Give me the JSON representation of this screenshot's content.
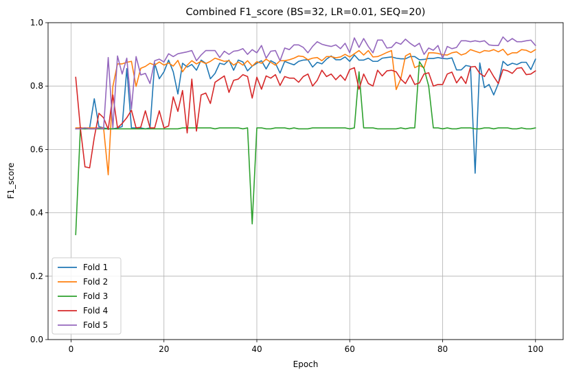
{
  "chart_data": {
    "type": "line",
    "title": "Combined F1_score (BS=32, LR=0.01, SEQ=20)",
    "xlabel": "Epoch",
    "ylabel": "F1_score",
    "xlim": [
      -4.95,
      105.95
    ],
    "ylim": [
      0.0,
      1.0
    ],
    "xticks": [
      0,
      20,
      40,
      60,
      80,
      100
    ],
    "yticks": [
      0.0,
      0.2,
      0.4,
      0.6,
      0.8,
      1.0
    ],
    "xtick_labels": [
      "0",
      "20",
      "40",
      "60",
      "80",
      "100"
    ],
    "ytick_labels": [
      "0.0",
      "0.2",
      "0.4",
      "0.6",
      "0.8",
      "1.0"
    ],
    "grid": true,
    "legend_position": "lower-left",
    "x": [
      1,
      2,
      3,
      4,
      5,
      6,
      7,
      8,
      9,
      10,
      11,
      12,
      13,
      14,
      15,
      16,
      17,
      18,
      19,
      20,
      21,
      22,
      23,
      24,
      25,
      26,
      27,
      28,
      29,
      30,
      31,
      32,
      33,
      34,
      35,
      36,
      37,
      38,
      39,
      40,
      41,
      42,
      43,
      44,
      45,
      46,
      47,
      48,
      49,
      50,
      51,
      52,
      53,
      54,
      55,
      56,
      57,
      58,
      59,
      60,
      61,
      62,
      63,
      64,
      65,
      66,
      67,
      68,
      69,
      70,
      71,
      72,
      73,
      74,
      75,
      76,
      77,
      78,
      79,
      80,
      81,
      82,
      83,
      84,
      85,
      86,
      87,
      88,
      89,
      90,
      91,
      92,
      93,
      94,
      95,
      96,
      97,
      98,
      99,
      100
    ],
    "series": [
      {
        "name": "Fold 1",
        "color": "#1f77b4",
        "values": [
          0.665,
          0.669,
          0.665,
          0.668,
          0.76,
          0.672,
          0.668,
          0.665,
          0.665,
          0.668,
          0.672,
          0.855,
          0.668,
          0.668,
          0.668,
          0.665,
          0.668,
          0.872,
          0.823,
          0.845,
          0.882,
          0.845,
          0.775,
          0.872,
          0.86,
          0.868,
          0.85,
          0.882,
          0.872,
          0.823,
          0.84,
          0.872,
          0.868,
          0.882,
          0.85,
          0.882,
          0.876,
          0.848,
          0.863,
          0.872,
          0.88,
          0.854,
          0.88,
          0.872,
          0.841,
          0.878,
          0.872,
          0.867,
          0.878,
          0.882,
          0.883,
          0.86,
          0.875,
          0.87,
          0.885,
          0.895,
          0.883,
          0.883,
          0.892,
          0.878,
          0.898,
          0.882,
          0.882,
          0.888,
          0.878,
          0.878,
          0.888,
          0.89,
          0.892,
          0.888,
          0.886,
          0.886,
          0.893,
          0.893,
          0.883,
          0.884,
          0.887,
          0.887,
          0.89,
          0.887,
          0.886,
          0.889,
          0.851,
          0.851,
          0.865,
          0.862,
          0.525,
          0.873,
          0.795,
          0.805,
          0.772,
          0.808,
          0.878,
          0.865,
          0.872,
          0.868,
          0.875,
          0.875,
          0.852,
          0.885
        ]
      },
      {
        "name": "Fold 2",
        "color": "#ff7f0e",
        "values": [
          0.668,
          0.668,
          0.668,
          0.668,
          0.668,
          0.668,
          0.668,
          0.52,
          0.799,
          0.87,
          0.87,
          0.875,
          0.878,
          0.799,
          0.856,
          0.862,
          0.872,
          0.866,
          0.876,
          0.866,
          0.873,
          0.863,
          0.881,
          0.845,
          0.866,
          0.88,
          0.87,
          0.878,
          0.871,
          0.878,
          0.888,
          0.883,
          0.878,
          0.88,
          0.866,
          0.876,
          0.866,
          0.88,
          0.863,
          0.877,
          0.872,
          0.885,
          0.875,
          0.866,
          0.88,
          0.88,
          0.883,
          0.888,
          0.895,
          0.893,
          0.883,
          0.888,
          0.89,
          0.88,
          0.893,
          0.893,
          0.889,
          0.892,
          0.9,
          0.892,
          0.902,
          0.912,
          0.898,
          0.912,
          0.892,
          0.893,
          0.899,
          0.906,
          0.912,
          0.789,
          0.823,
          0.895,
          0.903,
          0.858,
          0.865,
          0.858,
          0.905,
          0.905,
          0.903,
          0.899,
          0.898,
          0.905,
          0.908,
          0.898,
          0.903,
          0.915,
          0.91,
          0.905,
          0.912,
          0.91,
          0.915,
          0.908,
          0.916,
          0.898,
          0.905,
          0.905,
          0.915,
          0.913,
          0.906,
          0.915
        ]
      },
      {
        "name": "Fold 3",
        "color": "#2ca02c",
        "values": [
          0.331,
          0.665,
          0.665,
          0.665,
          0.665,
          0.665,
          0.665,
          0.665,
          0.665,
          0.665,
          0.665,
          0.665,
          0.665,
          0.665,
          0.665,
          0.665,
          0.665,
          0.665,
          0.665,
          0.665,
          0.665,
          0.665,
          0.665,
          0.668,
          0.668,
          0.668,
          0.668,
          0.668,
          0.668,
          0.668,
          0.665,
          0.668,
          0.668,
          0.668,
          0.668,
          0.668,
          0.665,
          0.668,
          0.365,
          0.668,
          0.668,
          0.665,
          0.665,
          0.668,
          0.668,
          0.668,
          0.665,
          0.668,
          0.665,
          0.665,
          0.665,
          0.668,
          0.668,
          0.668,
          0.668,
          0.668,
          0.668,
          0.668,
          0.668,
          0.665,
          0.668,
          0.845,
          0.668,
          0.668,
          0.668,
          0.665,
          0.665,
          0.665,
          0.665,
          0.665,
          0.668,
          0.665,
          0.668,
          0.668,
          0.877,
          0.855,
          0.8,
          0.668,
          0.668,
          0.665,
          0.668,
          0.665,
          0.665,
          0.668,
          0.668,
          0.668,
          0.665,
          0.665,
          0.668,
          0.668,
          0.665,
          0.668,
          0.668,
          0.668,
          0.665,
          0.665,
          0.668,
          0.665,
          0.665,
          0.668
        ]
      },
      {
        "name": "Fold 4",
        "color": "#d62728",
        "values": [
          0.828,
          0.668,
          0.545,
          0.542,
          0.638,
          0.714,
          0.7,
          0.663,
          0.772,
          0.668,
          0.682,
          0.7,
          0.724,
          0.668,
          0.67,
          0.722,
          0.668,
          0.668,
          0.722,
          0.668,
          0.674,
          0.766,
          0.72,
          0.786,
          0.652,
          0.822,
          0.658,
          0.772,
          0.778,
          0.745,
          0.812,
          0.822,
          0.832,
          0.78,
          0.818,
          0.822,
          0.836,
          0.83,
          0.762,
          0.828,
          0.79,
          0.832,
          0.825,
          0.836,
          0.802,
          0.83,
          0.825,
          0.825,
          0.812,
          0.83,
          0.838,
          0.8,
          0.818,
          0.85,
          0.83,
          0.838,
          0.82,
          0.835,
          0.818,
          0.852,
          0.858,
          0.79,
          0.838,
          0.808,
          0.8,
          0.85,
          0.832,
          0.848,
          0.85,
          0.845,
          0.822,
          0.808,
          0.835,
          0.805,
          0.81,
          0.838,
          0.842,
          0.8,
          0.805,
          0.805,
          0.838,
          0.844,
          0.81,
          0.83,
          0.808,
          0.86,
          0.862,
          0.84,
          0.83,
          0.855,
          0.83,
          0.808,
          0.852,
          0.848,
          0.84,
          0.856,
          0.858,
          0.836,
          0.838,
          0.848
        ]
      },
      {
        "name": "Fold 5",
        "color": "#9467bd",
        "values": [
          0.665,
          0.665,
          0.668,
          0.665,
          0.665,
          0.668,
          0.665,
          0.89,
          0.668,
          0.895,
          0.838,
          0.888,
          0.728,
          0.893,
          0.835,
          0.84,
          0.808,
          0.88,
          0.885,
          0.876,
          0.902,
          0.893,
          0.902,
          0.905,
          0.908,
          0.912,
          0.88,
          0.898,
          0.912,
          0.912,
          0.912,
          0.89,
          0.91,
          0.9,
          0.91,
          0.912,
          0.918,
          0.9,
          0.915,
          0.905,
          0.928,
          0.888,
          0.91,
          0.912,
          0.88,
          0.92,
          0.915,
          0.93,
          0.93,
          0.922,
          0.905,
          0.925,
          0.94,
          0.932,
          0.928,
          0.925,
          0.93,
          0.918,
          0.935,
          0.905,
          0.952,
          0.922,
          0.95,
          0.925,
          0.905,
          0.945,
          0.945,
          0.92,
          0.922,
          0.938,
          0.932,
          0.948,
          0.935,
          0.925,
          0.935,
          0.9,
          0.92,
          0.913,
          0.928,
          0.888,
          0.925,
          0.918,
          0.922,
          0.943,
          0.943,
          0.94,
          0.943,
          0.94,
          0.943,
          0.93,
          0.928,
          0.928,
          0.955,
          0.94,
          0.95,
          0.94,
          0.94,
          0.943,
          0.945,
          0.928
        ]
      }
    ]
  }
}
